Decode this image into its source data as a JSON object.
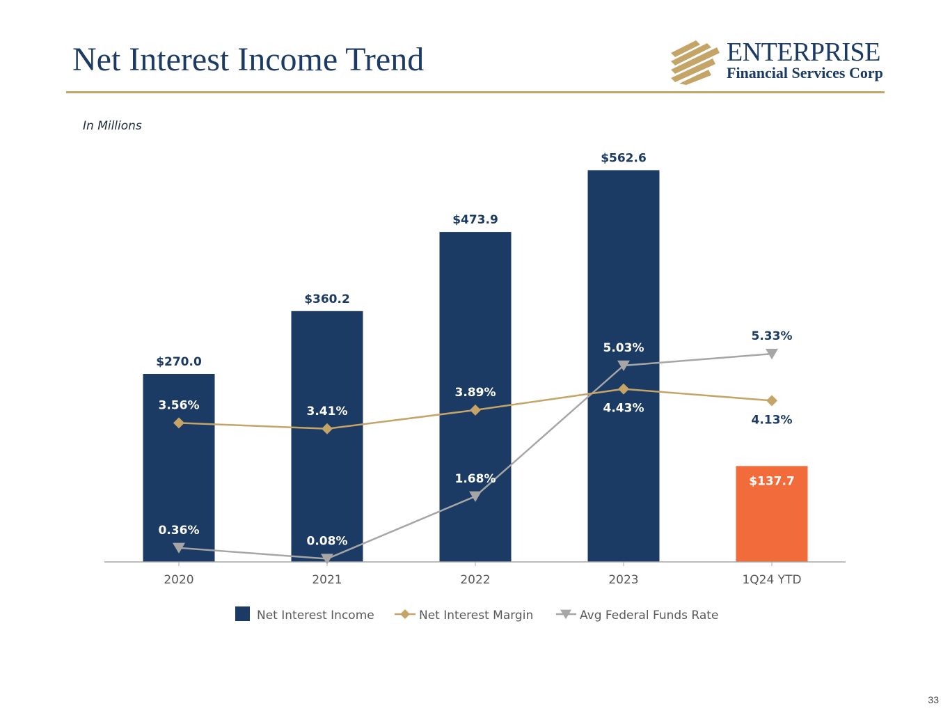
{
  "header": {
    "title": "Net Interest Income Trend",
    "logo_wordmark": "ENTERPRISE",
    "logo_subtitle": "Financial Services Corp"
  },
  "units_note": "In Millions",
  "page_number": "33",
  "colors": {
    "navy": "#1b3a64",
    "gold": "#c5a468",
    "orange": "#f26b3a",
    "gray": "#a6a6a6"
  },
  "chart_data": {
    "type": "bar",
    "title": "Net Interest Income Trend",
    "categories": [
      "2020",
      "2021",
      "2022",
      "2023",
      "1Q24  YTD"
    ],
    "ylim": [
      0,
      600
    ],
    "rate_ylim": [
      0,
      10.7
    ],
    "series": [
      {
        "name": "Net Interest Income",
        "kind": "bar",
        "values": [
          270.0,
          360.2,
          473.9,
          562.6,
          137.7
        ],
        "labels": [
          "$270.0",
          "$360.2",
          "$473.9",
          "$562.6",
          "$137.7"
        ],
        "highlight_last": true
      },
      {
        "name": "Net Interest Margin",
        "kind": "line",
        "marker": "diamond",
        "values": [
          3.56,
          3.41,
          3.89,
          4.43,
          4.13
        ],
        "labels": [
          "3.56%",
          "3.41%",
          "3.89%",
          "4.43%",
          "4.13%"
        ]
      },
      {
        "name": "Avg Federal Funds Rate",
        "kind": "line",
        "marker": "triangle-down",
        "values": [
          0.36,
          0.08,
          1.68,
          5.03,
          5.33
        ],
        "labels": [
          "0.36%",
          "0.08%",
          "1.68%",
          "5.03%",
          "5.33%"
        ]
      }
    ],
    "legend": [
      "Net Interest Income",
      "Net Interest Margin",
      "Avg Federal Funds Rate"
    ],
    "legend_position": "bottom"
  }
}
